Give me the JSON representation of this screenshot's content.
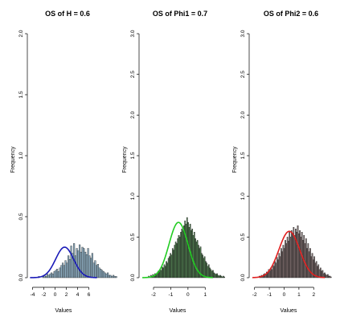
{
  "chart_data": [
    {
      "type": "histogram",
      "title": "OS of H = 0.6",
      "xlabel": "Values",
      "ylabel": "Frequency",
      "xlim": [
        -4.5,
        7.5
      ],
      "ylim": [
        0,
        2.0
      ],
      "xticks": [
        -4,
        -2,
        0,
        2,
        4,
        6
      ],
      "yticks": [
        0.0,
        0.5,
        1.0,
        1.5,
        2.0
      ],
      "bar_color": "#8faec2",
      "curve_color": "#1a1ab8",
      "density_curve": {
        "mean": 1.7,
        "sd": 1.6,
        "peak": 0.25
      },
      "bins": {
        "start": -3.0,
        "width": 0.25,
        "values": [
          0.01,
          0.0,
          0.0,
          0.01,
          0.02,
          0.01,
          0.03,
          0.02,
          0.03,
          0.04,
          0.03,
          0.05,
          0.06,
          0.07,
          0.05,
          0.08,
          0.1,
          0.12,
          0.1,
          0.14,
          0.12,
          0.18,
          0.15,
          0.26,
          0.2,
          0.28,
          0.18,
          0.24,
          0.22,
          0.27,
          0.21,
          0.25,
          0.24,
          0.21,
          0.19,
          0.24,
          0.18,
          0.16,
          0.2,
          0.12,
          0.14,
          0.1,
          0.11,
          0.08,
          0.07,
          0.06,
          0.05,
          0.04,
          0.03,
          0.04,
          0.02,
          0.02,
          0.01,
          0.02,
          0.01,
          0.01
        ]
      }
    },
    {
      "type": "histogram",
      "title": "OS of Phi1 = 0.7",
      "xlabel": "Values",
      "ylabel": "Frequency",
      "xlim": [
        -2.7,
        1.5
      ],
      "ylim": [
        0,
        3.0
      ],
      "xticks": [
        -2,
        -1,
        0,
        1
      ],
      "yticks": [
        0.0,
        0.5,
        1.0,
        1.5,
        2.0,
        2.5,
        3.0
      ],
      "bar_color": "#507a50",
      "curve_color": "#22cc22",
      "density_curve": {
        "mean": -0.55,
        "sd": 0.55,
        "peak": 0.68
      },
      "bins": {
        "start": -2.3,
        "width": 0.06,
        "values": [
          0.02,
          0.01,
          0.03,
          0.02,
          0.04,
          0.03,
          0.05,
          0.04,
          0.06,
          0.08,
          0.07,
          0.1,
          0.09,
          0.13,
          0.12,
          0.16,
          0.14,
          0.2,
          0.18,
          0.24,
          0.26,
          0.3,
          0.28,
          0.36,
          0.34,
          0.4,
          0.44,
          0.42,
          0.48,
          0.52,
          0.5,
          0.56,
          0.6,
          0.58,
          0.64,
          0.7,
          0.66,
          0.74,
          0.68,
          0.62,
          0.66,
          0.58,
          0.6,
          0.52,
          0.56,
          0.48,
          0.44,
          0.46,
          0.4,
          0.36,
          0.38,
          0.3,
          0.28,
          0.24,
          0.26,
          0.2,
          0.18,
          0.14,
          0.16,
          0.12,
          0.1,
          0.08,
          0.09,
          0.06,
          0.05,
          0.04,
          0.05,
          0.03,
          0.02,
          0.03,
          0.02,
          0.01,
          0.02,
          0.01
        ]
      }
    },
    {
      "type": "histogram",
      "title": "OS of Phi2 = 0.6",
      "xlabel": "Values",
      "ylabel": "Frequency",
      "xlim": [
        -2.2,
        2.8
      ],
      "ylim": [
        0,
        3.0
      ],
      "xticks": [
        -2,
        -1,
        0,
        1,
        2
      ],
      "yticks": [
        0.0,
        0.5,
        1.0,
        1.5,
        2.0,
        2.5,
        3.0
      ],
      "bar_color": "#7a6a6a",
      "curve_color": "#e02020",
      "density_curve": {
        "mean": 0.35,
        "sd": 0.7,
        "peak": 0.57
      },
      "bins": {
        "start": -1.7,
        "width": 0.07,
        "values": [
          0.02,
          0.01,
          0.03,
          0.02,
          0.04,
          0.05,
          0.04,
          0.07,
          0.06,
          0.1,
          0.08,
          0.12,
          0.1,
          0.16,
          0.14,
          0.2,
          0.18,
          0.25,
          0.22,
          0.3,
          0.26,
          0.36,
          0.32,
          0.4,
          0.36,
          0.46,
          0.42,
          0.5,
          0.45,
          0.56,
          0.5,
          0.58,
          0.54,
          0.62,
          0.52,
          0.6,
          0.56,
          0.64,
          0.54,
          0.58,
          0.5,
          0.56,
          0.46,
          0.52,
          0.42,
          0.48,
          0.36,
          0.42,
          0.32,
          0.36,
          0.26,
          0.3,
          0.22,
          0.26,
          0.18,
          0.2,
          0.14,
          0.16,
          0.1,
          0.12,
          0.08,
          0.09,
          0.05,
          0.06,
          0.04,
          0.03,
          0.04,
          0.02,
          0.02,
          0.01
        ]
      }
    }
  ]
}
